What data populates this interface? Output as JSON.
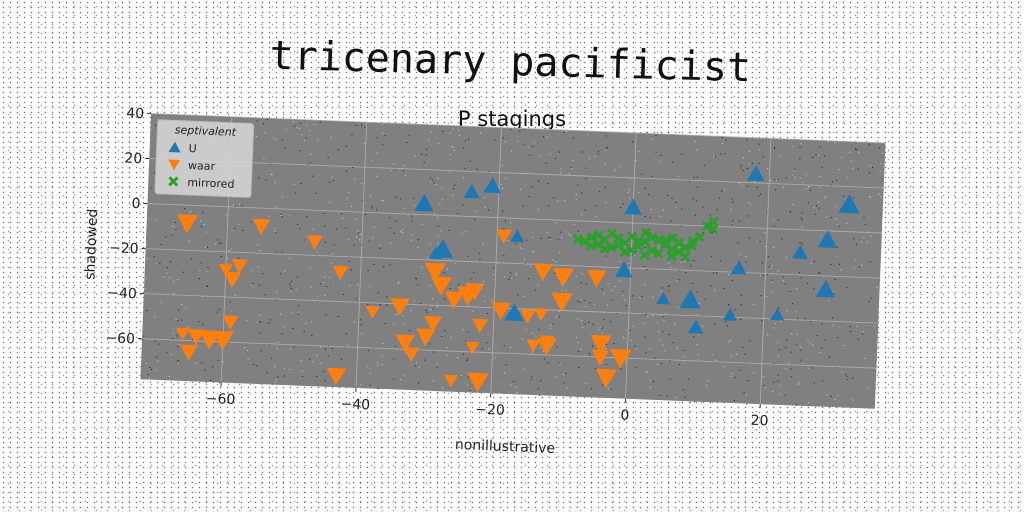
{
  "chart_data": {
    "type": "scatter",
    "title": "tricenary pacificist",
    "subtitle": "P stagings",
    "xlabel": "nonillustrative",
    "ylabel": "shadowed",
    "xlim": [
      -72,
      37
    ],
    "ylim": [
      -78,
      40
    ],
    "xticks": [
      -60,
      -40,
      -20,
      0,
      20
    ],
    "yticks": [
      40,
      20,
      0,
      -20,
      -40,
      -60
    ],
    "xtick_labels": [
      "−60",
      "−40",
      "−20",
      "0",
      "20"
    ],
    "ytick_labels": [
      "40",
      "20",
      "0",
      "−20",
      "−40",
      "−60"
    ],
    "grid": true,
    "legend": {
      "title": "septivalent",
      "position": "top-left"
    },
    "series": [
      {
        "name": "U",
        "marker": "triangle-up",
        "color": "#1f77b4",
        "points": [
          [
            -31,
            5
          ],
          [
            -24,
            11
          ],
          [
            -21,
            14
          ],
          [
            -17,
            -8
          ],
          [
            -29,
            -17
          ],
          [
            -28,
            -15
          ],
          [
            0,
            7
          ],
          [
            -1,
            -21
          ],
          [
            -17,
            -42
          ],
          [
            5,
            -33
          ],
          [
            9,
            -33
          ],
          [
            10,
            -45
          ],
          [
            15,
            -39
          ],
          [
            16,
            -18
          ],
          [
            18,
            24
          ],
          [
            22,
            -38
          ],
          [
            25,
            -10
          ],
          [
            29,
            -4
          ],
          [
            29,
            -26
          ],
          [
            32,
            12
          ]
        ]
      },
      {
        "name": "waar",
        "marker": "triangle-down",
        "color": "#ff7f0e",
        "points": [
          [
            -66,
            -8
          ],
          [
            -55,
            -8
          ],
          [
            -47,
            -14
          ],
          [
            -43,
            -27
          ],
          [
            -60,
            -28
          ],
          [
            -58,
            -26
          ],
          [
            -59,
            -32
          ],
          [
            -59,
            -51
          ],
          [
            -66,
            -57
          ],
          [
            -64,
            -58
          ],
          [
            -62,
            -59
          ],
          [
            -60,
            -59
          ],
          [
            -65,
            -65
          ],
          [
            -38,
            -44
          ],
          [
            -34,
            -41
          ],
          [
            -33,
            -57
          ],
          [
            -32,
            -62
          ],
          [
            -29,
            -25
          ],
          [
            -28,
            -31
          ],
          [
            -29,
            -48
          ],
          [
            -30,
            -54
          ],
          [
            -26,
            -37
          ],
          [
            -24,
            -35
          ],
          [
            -23,
            -33
          ],
          [
            -22,
            -48
          ],
          [
            -23,
            -58
          ],
          [
            -26,
            -73
          ],
          [
            -22,
            -73
          ],
          [
            -19,
            -8
          ],
          [
            -19,
            -41
          ],
          [
            -15,
            -43
          ],
          [
            -14,
            -56
          ],
          [
            -13,
            -42
          ],
          [
            -13,
            -23
          ],
          [
            -10,
            -25
          ],
          [
            -12,
            -56
          ],
          [
            -12,
            -54
          ],
          [
            -10,
            -36
          ],
          [
            -5,
            -25
          ],
          [
            -4,
            -54
          ],
          [
            -4,
            -60
          ],
          [
            -1,
            -60
          ],
          [
            -3,
            -69
          ],
          [
            -43,
            -73
          ]
        ]
      },
      {
        "name": "mirrored",
        "marker": "x",
        "color": "#2ca02c",
        "points": [
          [
            -7,
            -9
          ],
          [
            -6,
            -7
          ],
          [
            -5,
            -10
          ],
          [
            -4,
            -8
          ],
          [
            -3,
            -11
          ],
          [
            -2,
            -7
          ],
          [
            -1,
            -9
          ],
          [
            0,
            -6
          ],
          [
            1,
            -10
          ],
          [
            2,
            -8
          ],
          [
            3,
            -12
          ],
          [
            4,
            -7
          ],
          [
            5,
            -9
          ],
          [
            6,
            -11
          ],
          [
            7,
            -8
          ],
          [
            8,
            -10
          ],
          [
            9,
            -9
          ],
          [
            10,
            -5
          ],
          [
            -6,
            -11
          ],
          [
            -3,
            -5
          ],
          [
            0,
            -12
          ],
          [
            2,
            -4
          ],
          [
            4,
            -13
          ],
          [
            6,
            -6
          ],
          [
            8,
            -14
          ],
          [
            -5,
            -6
          ],
          [
            -1,
            -13
          ],
          [
            3,
            -6
          ],
          [
            7,
            -12
          ],
          [
            9,
            -7
          ],
          [
            1,
            -8
          ],
          [
            -2,
            -10
          ],
          [
            5,
            -7
          ],
          [
            12,
            -1
          ],
          [
            11,
            0
          ],
          [
            12,
            2
          ],
          [
            6,
            -14
          ],
          [
            -8,
            -8
          ],
          [
            -4,
            -12
          ],
          [
            2,
            -14
          ]
        ]
      }
    ]
  }
}
